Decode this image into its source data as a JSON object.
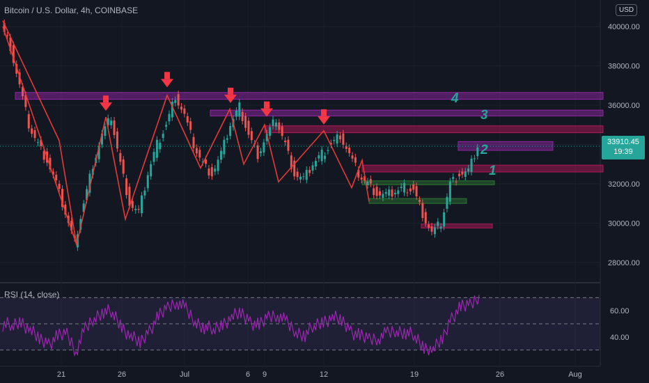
{
  "header": {
    "title": "Bitcoin / U.S. Dollar, 4h, COINBASE",
    "currency": "USD"
  },
  "rsi_label": "RSI (14, close)",
  "price_tag": {
    "price": "33910.45",
    "countdown": "19:39"
  },
  "chart_data": {
    "type": "line",
    "title": "Bitcoin / U.S. Dollar, 4h, COINBASE",
    "x_tick_labels": [
      "21",
      "26",
      "Jul",
      "6",
      "9",
      "12",
      "19",
      "26",
      "Aug"
    ],
    "price_axis": {
      "ticks": [
        "28000.00",
        "30000.00",
        "32000.00",
        "34000.00",
        "36000.00",
        "38000.00",
        "40000.00"
      ],
      "ylim": [
        27000,
        41000
      ]
    },
    "rsi_axis": {
      "ticks": [
        "40.00",
        "60.00"
      ],
      "levels": [
        70,
        50,
        30
      ]
    },
    "price_series": [
      40000,
      39000,
      37000,
      35000,
      34000,
      33200,
      32000,
      30500,
      29000,
      31000,
      33000,
      34500,
      35400,
      33000,
      31000,
      30500,
      32500,
      34000,
      35000,
      36500,
      35500,
      34000,
      33000,
      32500,
      33500,
      35000,
      35900,
      34500,
      33500,
      34500,
      35300,
      34000,
      32500,
      32200,
      33000,
      33500,
      34000,
      34500,
      33500,
      32500,
      32000,
      31500,
      31400,
      31600,
      31800,
      31700,
      30500,
      29500,
      30000,
      32000,
      32500,
      32600,
      33910
    ],
    "zigzag_points": [
      [
        40000
      ],
      [
        28900
      ],
      [
        35400
      ],
      [
        30200
      ],
      [
        36500
      ],
      [
        32800
      ],
      [
        35800
      ],
      [
        33000
      ],
      [
        35000
      ],
      [
        32100
      ],
      [
        34700
      ],
      [
        31200
      ],
      [
        33200
      ],
      [
        31100
      ]
    ],
    "arrow_labels": [],
    "zone_labels": [
      "1",
      "2",
      "3",
      "4"
    ],
    "rsi_series": [
      50,
      48,
      52,
      45,
      38,
      35,
      40,
      42,
      30,
      45,
      55,
      60,
      58,
      48,
      40,
      35,
      45,
      55,
      62,
      68,
      60,
      52,
      48,
      45,
      50,
      55,
      58,
      52,
      48,
      55,
      58,
      50,
      44,
      42,
      48,
      52,
      55,
      52,
      45,
      40,
      38,
      40,
      42,
      45,
      44,
      40,
      32,
      30,
      38,
      55,
      62,
      64,
      72
    ],
    "colors": {
      "up": "#26a69a",
      "down": "#ef5350",
      "zigzag": "#e53935",
      "zone_purple": "#9c27b0",
      "zone_red": "#c2185b",
      "zone_green": "#2e7d32",
      "rsi_line": "#9c27b0",
      "label": "#26a69a",
      "arrow": "#f23645"
    }
  }
}
